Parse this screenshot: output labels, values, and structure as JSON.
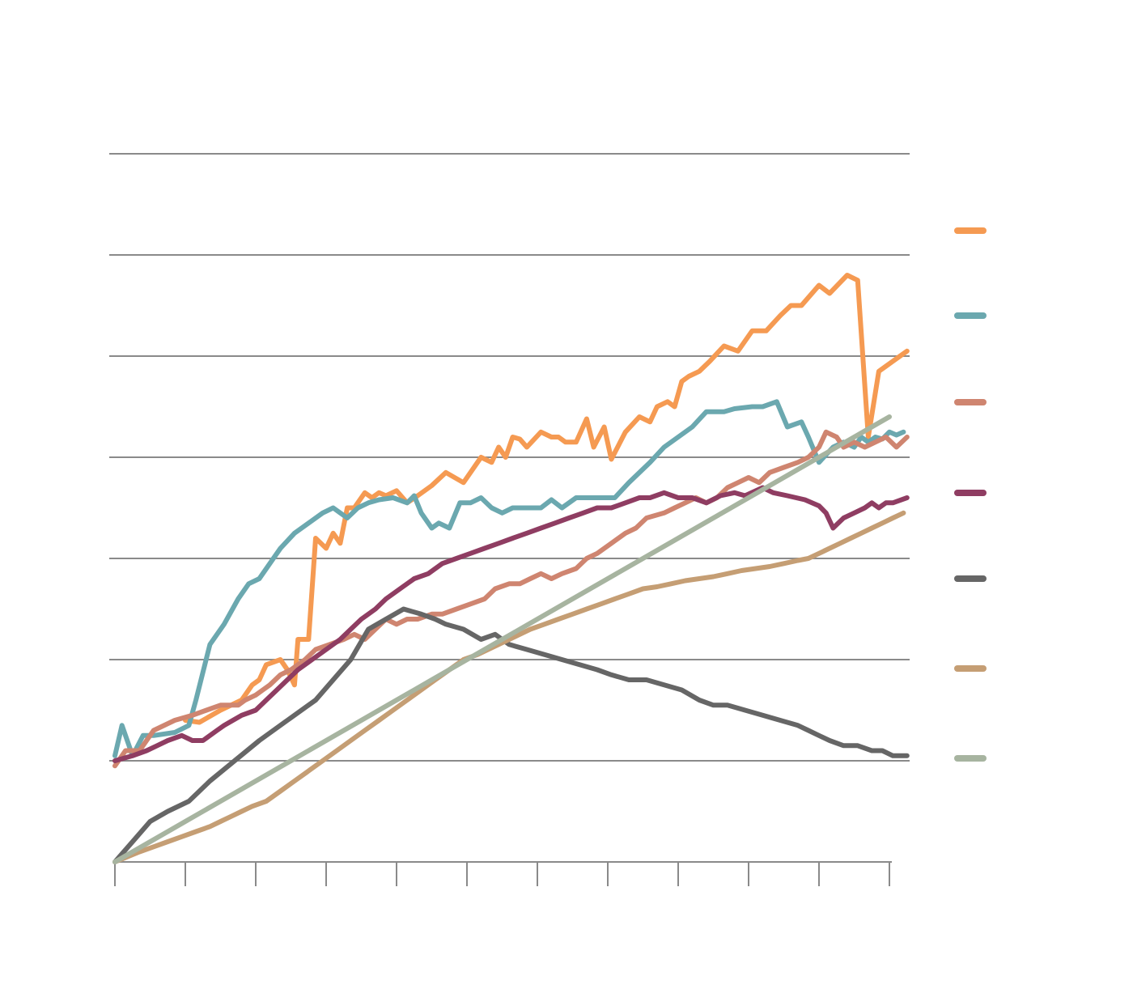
{
  "chart_data": {
    "type": "line",
    "title": "",
    "xlabel": "",
    "ylabel": "",
    "xlim": [
      0,
      11.3
    ],
    "ylim": [
      0,
      7
    ],
    "grid": true,
    "legend": "right",
    "x_ticks": [
      0,
      1,
      2,
      3,
      4,
      5,
      6,
      7,
      8,
      9,
      10,
      11
    ],
    "series": [
      {
        "color": "#F59A52",
        "x": [
          1.0,
          1.2,
          1.5,
          1.8,
          1.95,
          2.05,
          2.15,
          2.35,
          2.45,
          2.55,
          2.6,
          2.75,
          2.85,
          3.0,
          3.1,
          3.2,
          3.3,
          3.4,
          3.55,
          3.65,
          3.75,
          3.85,
          4.0,
          4.15,
          4.3,
          4.5,
          4.7,
          4.95,
          5.2,
          5.35,
          5.45,
          5.55,
          5.65,
          5.75,
          5.85,
          6.05,
          6.2,
          6.3,
          6.4,
          6.55,
          6.7,
          6.8,
          6.95,
          7.05,
          7.25,
          7.45,
          7.6,
          7.7,
          7.85,
          7.95,
          8.05,
          8.15,
          8.3,
          8.45,
          8.65,
          8.85,
          9.05,
          9.25,
          9.45,
          9.6,
          9.75,
          10.0,
          10.15,
          10.4,
          10.55,
          10.7,
          10.85,
          10.95,
          11.05,
          11.15,
          11.25
        ],
        "values": [
          1.4,
          1.38,
          1.5,
          1.6,
          1.75,
          1.8,
          1.95,
          2.0,
          1.9,
          1.75,
          2.2,
          2.2,
          3.2,
          3.1,
          3.25,
          3.15,
          3.5,
          3.5,
          3.65,
          3.6,
          3.65,
          3.62,
          3.67,
          3.55,
          3.62,
          3.72,
          3.85,
          3.75,
          4.0,
          3.95,
          4.1,
          4.0,
          4.2,
          4.18,
          4.1,
          4.25,
          4.2,
          4.2,
          4.15,
          4.15,
          4.38,
          4.1,
          4.3,
          3.98,
          4.25,
          4.4,
          4.35,
          4.5,
          4.55,
          4.5,
          4.75,
          4.8,
          4.85,
          4.95,
          5.1,
          5.05,
          5.25,
          5.25,
          5.4,
          5.5,
          5.5,
          5.7,
          5.62,
          5.8,
          5.75,
          4.2,
          4.85,
          4.9,
          4.95,
          5.0,
          5.05
        ]
      },
      {
        "color": "#6BA8AF",
        "x": [
          0,
          0.1,
          0.25,
          0.4,
          0.55,
          0.85,
          1.05,
          1.15,
          1.35,
          1.55,
          1.75,
          1.9,
          2.05,
          2.25,
          2.35,
          2.55,
          2.75,
          2.95,
          3.1,
          3.3,
          3.45,
          3.6,
          3.75,
          3.95,
          4.15,
          4.25,
          4.35,
          4.5,
          4.6,
          4.75,
          4.9,
          5.05,
          5.2,
          5.35,
          5.5,
          5.65,
          5.8,
          6.05,
          6.2,
          6.35,
          6.55,
          6.85,
          7.1,
          7.3,
          7.6,
          7.8,
          8.0,
          8.2,
          8.4,
          8.65,
          8.8,
          9.05,
          9.2,
          9.4,
          9.55,
          9.75,
          9.85,
          10.0,
          10.2,
          10.35,
          10.5,
          10.6,
          10.7,
          10.8,
          10.9,
          11.0,
          11.1,
          11.2
        ],
        "values": [
          1.05,
          1.35,
          1.05,
          1.25,
          1.25,
          1.28,
          1.35,
          1.6,
          2.15,
          2.35,
          2.6,
          2.75,
          2.8,
          3.0,
          3.1,
          3.25,
          3.35,
          3.45,
          3.5,
          3.4,
          3.5,
          3.55,
          3.58,
          3.6,
          3.55,
          3.62,
          3.45,
          3.3,
          3.35,
          3.3,
          3.55,
          3.55,
          3.6,
          3.5,
          3.45,
          3.5,
          3.5,
          3.5,
          3.58,
          3.5,
          3.6,
          3.6,
          3.6,
          3.75,
          3.95,
          4.1,
          4.2,
          4.3,
          4.45,
          4.45,
          4.48,
          4.5,
          4.5,
          4.55,
          4.3,
          4.35,
          4.2,
          3.95,
          4.1,
          4.15,
          4.1,
          4.2,
          4.15,
          4.2,
          4.18,
          4.25,
          4.22,
          4.25
        ]
      },
      {
        "color": "#CF8570",
        "x": [
          0,
          0.15,
          0.35,
          0.55,
          0.85,
          1.1,
          1.3,
          1.5,
          1.6,
          1.75,
          1.85,
          2.0,
          2.1,
          2.2,
          2.35,
          2.5,
          2.7,
          2.85,
          3.05,
          3.25,
          3.4,
          3.55,
          3.7,
          3.85,
          4.0,
          4.15,
          4.3,
          4.5,
          4.65,
          4.85,
          5.05,
          5.25,
          5.4,
          5.6,
          5.75,
          5.9,
          6.05,
          6.2,
          6.35,
          6.55,
          6.7,
          6.85,
          7.05,
          7.25,
          7.4,
          7.55,
          7.8,
          7.95,
          8.1,
          8.25,
          8.4,
          8.55,
          8.7,
          8.85,
          9.0,
          9.15,
          9.3,
          9.5,
          9.7,
          9.85,
          10.0,
          10.1,
          10.25,
          10.35,
          10.5,
          10.65,
          10.8,
          10.95,
          11.1,
          11.25
        ],
        "values": [
          0.95,
          1.1,
          1.1,
          1.3,
          1.4,
          1.45,
          1.5,
          1.55,
          1.55,
          1.55,
          1.6,
          1.65,
          1.7,
          1.75,
          1.85,
          1.9,
          2.0,
          2.1,
          2.15,
          2.2,
          2.25,
          2.2,
          2.3,
          2.4,
          2.35,
          2.4,
          2.4,
          2.45,
          2.45,
          2.5,
          2.55,
          2.6,
          2.7,
          2.75,
          2.75,
          2.8,
          2.85,
          2.8,
          2.85,
          2.9,
          3.0,
          3.05,
          3.15,
          3.25,
          3.3,
          3.4,
          3.45,
          3.5,
          3.55,
          3.6,
          3.55,
          3.6,
          3.7,
          3.75,
          3.8,
          3.75,
          3.85,
          3.9,
          3.95,
          4.0,
          4.1,
          4.25,
          4.2,
          4.1,
          4.15,
          4.1,
          4.15,
          4.2,
          4.1,
          4.2
        ]
      },
      {
        "color": "#8F3D62",
        "x": [
          0,
          0.25,
          0.45,
          0.6,
          0.75,
          0.95,
          1.1,
          1.25,
          1.45,
          1.55,
          1.8,
          2.0,
          2.15,
          2.3,
          2.45,
          2.6,
          2.8,
          3.0,
          3.2,
          3.35,
          3.5,
          3.7,
          3.85,
          4.05,
          4.25,
          4.45,
          4.65,
          4.85,
          5.05,
          5.25,
          5.45,
          5.65,
          5.85,
          6.05,
          6.25,
          6.45,
          6.65,
          6.85,
          7.05,
          7.25,
          7.45,
          7.6,
          7.8,
          8.0,
          8.2,
          8.4,
          8.6,
          8.8,
          8.95,
          9.2,
          9.35,
          9.55,
          9.8,
          10.0,
          10.1,
          10.2,
          10.35,
          10.5,
          10.65,
          10.75,
          10.85,
          10.95,
          11.05,
          11.25
        ],
        "values": [
          1.0,
          1.05,
          1.1,
          1.15,
          1.2,
          1.25,
          1.2,
          1.2,
          1.3,
          1.35,
          1.45,
          1.5,
          1.6,
          1.7,
          1.8,
          1.9,
          2.0,
          2.1,
          2.2,
          2.3,
          2.4,
          2.5,
          2.6,
          2.7,
          2.8,
          2.85,
          2.95,
          3.0,
          3.05,
          3.1,
          3.15,
          3.2,
          3.25,
          3.3,
          3.35,
          3.4,
          3.45,
          3.5,
          3.5,
          3.55,
          3.6,
          3.6,
          3.65,
          3.6,
          3.6,
          3.55,
          3.62,
          3.65,
          3.62,
          3.7,
          3.65,
          3.62,
          3.58,
          3.52,
          3.45,
          3.3,
          3.4,
          3.45,
          3.5,
          3.55,
          3.5,
          3.55,
          3.55,
          3.6
        ]
      },
      {
        "color": "#666666",
        "x": [
          0,
          0.25,
          0.5,
          0.75,
          1.05,
          1.35,
          1.7,
          2.05,
          2.45,
          2.85,
          3.1,
          3.35,
          3.6,
          3.85,
          4.1,
          4.35,
          4.55,
          4.7,
          4.95,
          5.2,
          5.4,
          5.6,
          5.85,
          6.1,
          6.35,
          6.6,
          6.85,
          7.05,
          7.3,
          7.55,
          7.8,
          8.05,
          8.3,
          8.5,
          8.7,
          8.95,
          9.2,
          9.45,
          9.7,
          9.85,
          10.0,
          10.15,
          10.35,
          10.55,
          10.75,
          10.9,
          11.05,
          11.25
        ],
        "values": [
          0.0,
          0.2,
          0.4,
          0.5,
          0.6,
          0.8,
          1.0,
          1.2,
          1.4,
          1.6,
          1.8,
          2.0,
          2.3,
          2.4,
          2.5,
          2.45,
          2.4,
          2.35,
          2.3,
          2.2,
          2.25,
          2.15,
          2.1,
          2.05,
          2.0,
          1.95,
          1.9,
          1.85,
          1.8,
          1.8,
          1.75,
          1.7,
          1.6,
          1.55,
          1.55,
          1.5,
          1.45,
          1.4,
          1.35,
          1.3,
          1.25,
          1.2,
          1.15,
          1.15,
          1.1,
          1.1,
          1.05,
          1.05
        ]
      },
      {
        "color": "#C59E74",
        "x": [
          0,
          0.35,
          0.55,
          0.75,
          0.95,
          1.15,
          1.35,
          1.5,
          1.65,
          1.8,
          1.95,
          2.15,
          2.35,
          2.55,
          2.75,
          2.95,
          3.15,
          3.35,
          3.55,
          3.75,
          3.95,
          4.15,
          4.35,
          4.55,
          4.75,
          4.95,
          5.15,
          5.3,
          5.45,
          5.6,
          5.75,
          5.9,
          6.1,
          6.3,
          6.5,
          6.7,
          6.9,
          7.1,
          7.3,
          7.5,
          7.7,
          7.9,
          8.1,
          8.3,
          8.5,
          8.7,
          8.9,
          9.1,
          9.3,
          9.5,
          9.7,
          9.85,
          10.0,
          10.15,
          10.3,
          10.45,
          10.6,
          10.75,
          10.9,
          11.05,
          11.2
        ],
        "values": [
          0.0,
          0.1,
          0.15,
          0.2,
          0.25,
          0.3,
          0.35,
          0.4,
          0.45,
          0.5,
          0.55,
          0.6,
          0.7,
          0.8,
          0.9,
          1.0,
          1.1,
          1.2,
          1.3,
          1.4,
          1.5,
          1.6,
          1.7,
          1.8,
          1.9,
          2.0,
          2.05,
          2.1,
          2.15,
          2.2,
          2.25,
          2.3,
          2.35,
          2.4,
          2.45,
          2.5,
          2.55,
          2.6,
          2.65,
          2.7,
          2.72,
          2.75,
          2.78,
          2.8,
          2.82,
          2.85,
          2.88,
          2.9,
          2.92,
          2.95,
          2.98,
          3.0,
          3.05,
          3.1,
          3.15,
          3.2,
          3.25,
          3.3,
          3.35,
          3.4,
          3.45
        ]
      },
      {
        "color": "#A7B4A0",
        "x": [
          0,
          0.5,
          1.0,
          1.5,
          2.0,
          2.5,
          3.0,
          3.5,
          4.0,
          4.5,
          5.0,
          5.5,
          6.0,
          6.5,
          7.0,
          7.5,
          8.0,
          8.5,
          9.0,
          9.5,
          10.0,
          10.5,
          11.0
        ],
        "values": [
          0.0,
          0.2,
          0.4,
          0.6,
          0.8,
          1.0,
          1.2,
          1.4,
          1.6,
          1.8,
          2.0,
          2.2,
          2.4,
          2.6,
          2.8,
          3.0,
          3.2,
          3.4,
          3.6,
          3.8,
          4.0,
          4.2,
          4.4
        ]
      }
    ]
  }
}
